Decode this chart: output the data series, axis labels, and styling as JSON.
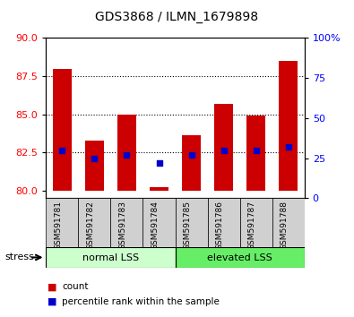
{
  "title": "GDS3868 / ILMN_1679898",
  "samples": [
    "GSM591781",
    "GSM591782",
    "GSM591783",
    "GSM591784",
    "GSM591785",
    "GSM591786",
    "GSM591787",
    "GSM591788"
  ],
  "count_values": [
    88.0,
    83.3,
    85.0,
    80.2,
    83.6,
    85.7,
    84.9,
    88.5
  ],
  "percentile_values": [
    30,
    25,
    27,
    22,
    27,
    30,
    30,
    32
  ],
  "ylim_left": [
    79.5,
    90
  ],
  "ylim_right": [
    0,
    100
  ],
  "yticks_left": [
    80,
    82.5,
    85,
    87.5,
    90
  ],
  "yticks_right": [
    0,
    25,
    50,
    75,
    100
  ],
  "ytick_labels_right": [
    "0",
    "25",
    "50",
    "75",
    "100%"
  ],
  "bar_color": "#cc0000",
  "dot_color": "#0000cc",
  "group1_label": "normal LSS",
  "group2_label": "elevated LSS",
  "group1_color": "#ccffcc",
  "group2_color": "#66ee66",
  "stress_label": "stress",
  "legend_count": "count",
  "legend_percentile": "percentile rank within the sample",
  "bar_bottom": 80,
  "bar_width": 0.6,
  "background_color": "#ffffff",
  "plot_bg_color": "#ffffff",
  "label_area_color": "#d0d0d0",
  "figsize": [
    3.95,
    3.54
  ],
  "dpi": 100
}
